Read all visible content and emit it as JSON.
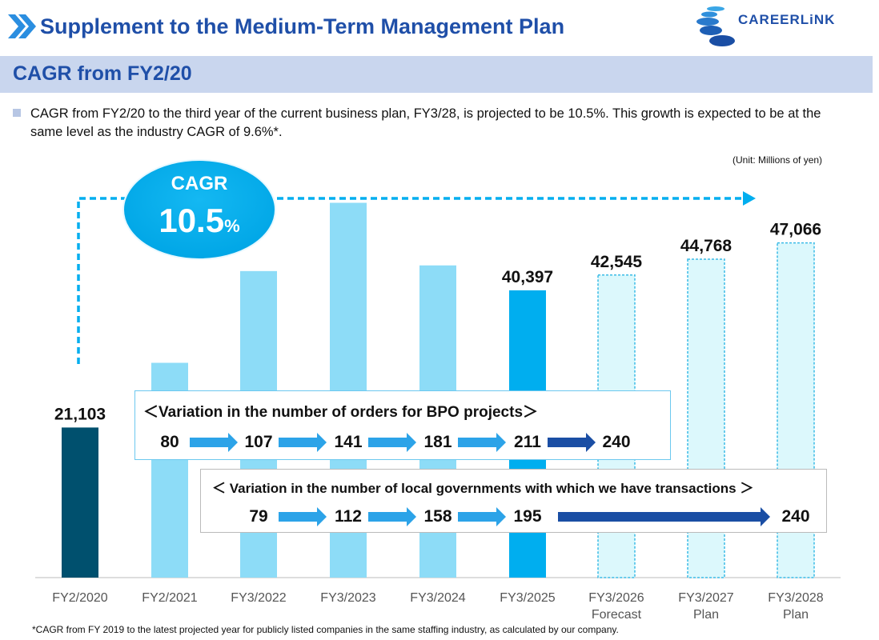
{
  "header": {
    "title": "Supplement to the Medium-Term Management Plan",
    "logo_text": "CAREERLiNK"
  },
  "section": {
    "title": "CAGR from FY2/20"
  },
  "description": "CAGR from FY2/20 to the third year of the current business plan, FY3/28, is projected to be 10.5%. This growth is expected to be at the same level as the industry CAGR of 9.6%*.",
  "unit": "(Unit: Millions of yen)",
  "cagr_badge": {
    "label": "CAGR",
    "value": "10.5",
    "suffix": "%"
  },
  "bpo_box": {
    "title": "＜Variation in the number of orders for BPO projects＞",
    "values": [
      "80",
      "107",
      "141",
      "181",
      "211",
      "240"
    ]
  },
  "gov_box": {
    "title": "＜ Variation in the number of local governments with which we have transactions ＞",
    "values": [
      "79",
      "112",
      "158",
      "195",
      "240"
    ]
  },
  "footnote": "*CAGR from FY 2019 to the latest projected year for publicly listed companies in the same staffing industry, as calculated by our company.",
  "colors": {
    "dark": "#00506e",
    "light": "#8ddcf7",
    "current": "#00aeef",
    "plan_fill": "#dcf8fc",
    "plan_border": "#3bbbe6",
    "accent": "#1f4fa8"
  },
  "chart_data": {
    "type": "bar",
    "title": "",
    "xlabel": "",
    "ylabel": "",
    "categories": [
      "FY2/2020",
      "FY2/2021",
      "FY3/2022",
      "FY3/2023",
      "FY3/2024",
      "FY3/2025",
      "FY3/2026",
      "FY3/2027",
      "FY3/2028"
    ],
    "sublabels": [
      "",
      "",
      "",
      "",
      "",
      "",
      "Forecast",
      "Plan",
      "Plan"
    ],
    "values": [
      21103,
      30200,
      43100,
      52700,
      43900,
      40397,
      42545,
      44768,
      47066
    ],
    "value_labels": [
      "21,103",
      null,
      null,
      null,
      null,
      "40,397",
      "42,545",
      "44,768",
      "47,066"
    ],
    "styles": [
      "dark",
      "light",
      "light",
      "light",
      "light",
      "current",
      "plan",
      "plan",
      "plan"
    ],
    "ylim": [
      0,
      60000
    ]
  }
}
